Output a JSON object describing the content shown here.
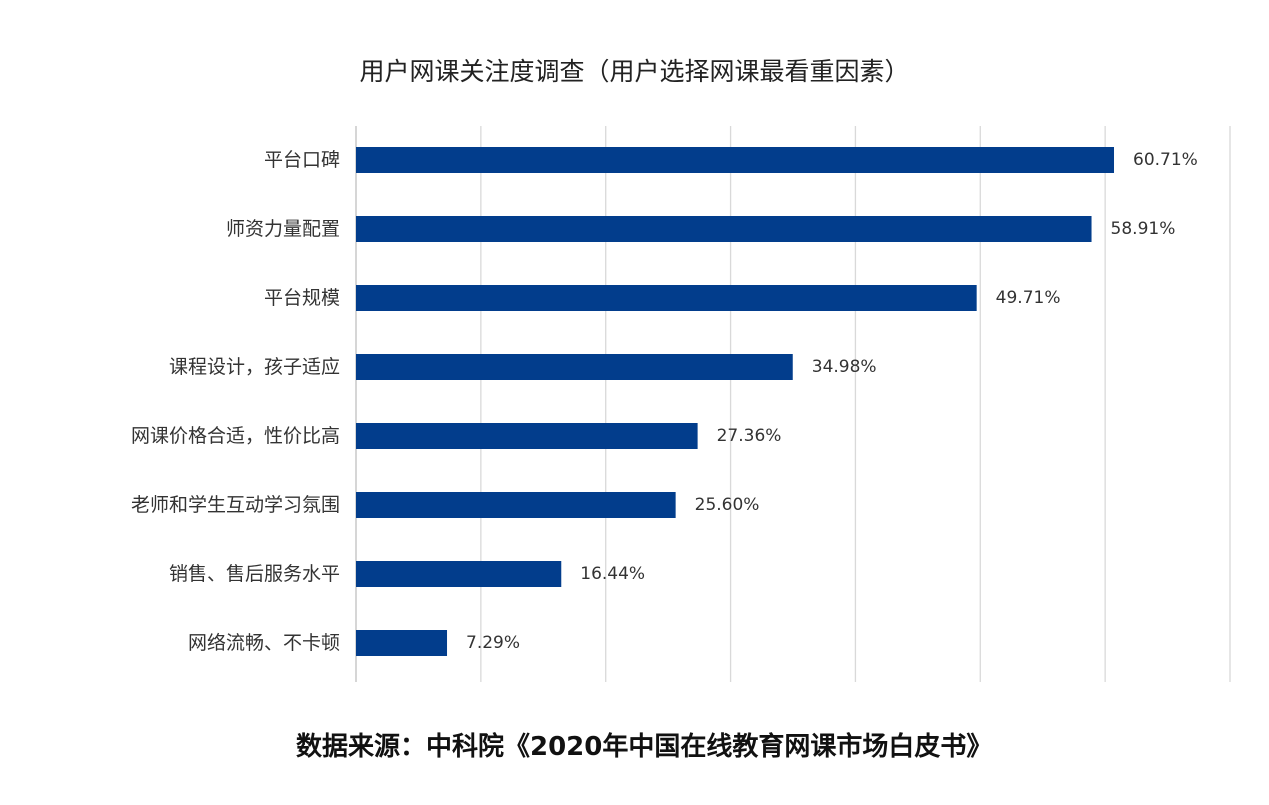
{
  "chart_data": {
    "type": "bar",
    "orientation": "horizontal",
    "title": "用户网课关注度调查（用户选择网课最看重因素）",
    "categories": [
      "平台口碑",
      "师资力量配置",
      "平台规模",
      "课程设计，孩子适应",
      "网课价格合适，性价比高",
      "老师和学生互动学习氛围",
      "销售、售后服务水平",
      "网络流畅、不卡顿"
    ],
    "values": [
      60.71,
      58.91,
      49.71,
      34.98,
      27.36,
      25.6,
      16.44,
      7.29
    ],
    "value_labels": [
      "60.71%",
      "58.91%",
      "49.71%",
      "34.98%",
      "27.36%",
      "25.60%",
      "16.44%",
      "7.29%"
    ],
    "xlim": [
      0,
      70
    ],
    "grid": true,
    "bar_color": "#023d8c",
    "grid_color": "#d9d9d9"
  },
  "source_note": "数据来源：中科院《2020年中国在线教育网课市场白皮书》"
}
